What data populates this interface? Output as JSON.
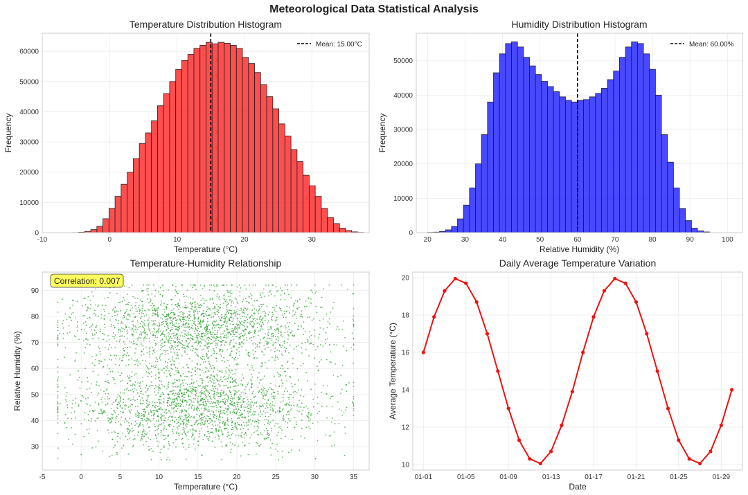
{
  "suptitle": "Meteorological Data Statistical Analysis",
  "chart_data": [
    {
      "type": "histogram",
      "title": "Temperature Distribution Histogram",
      "xlabel": "Temperature (°C)",
      "ylabel": "Frequency",
      "xlim": [
        -10,
        38.5
      ],
      "ylim": [
        0,
        66000
      ],
      "xticks": [
        -10,
        0,
        10,
        20,
        30
      ],
      "yticks": [
        0,
        10000,
        20000,
        30000,
        40000,
        50000,
        60000
      ],
      "bin_start": -5.5,
      "bin_width": 0.9,
      "counts": [
        40,
        150,
        420,
        1000,
        2100,
        4600,
        8000,
        12000,
        16000,
        20000,
        24500,
        29500,
        33000,
        37000,
        42000,
        46000,
        50000,
        54000,
        57000,
        59000,
        61000,
        62000,
        63000,
        62500,
        63000,
        62700,
        62000,
        61000,
        58000,
        56000,
        53000,
        49000,
        45000,
        41000,
        36000,
        32000,
        27500,
        23500,
        19000,
        15500,
        12000,
        8000,
        5000,
        3000,
        1500,
        700,
        250,
        80
      ],
      "mean_line": 15.0,
      "legend": {
        "label": "Mean: 15.00°C",
        "position": "top-right"
      },
      "color": "#ff2222",
      "mean_color": "#000000"
    },
    {
      "type": "histogram",
      "title": "Humidity Distribution Histogram",
      "xlabel": "Relative Humidity (%)",
      "ylabel": "Frequency",
      "xlim": [
        17,
        104
      ],
      "ylim": [
        0,
        58000
      ],
      "xticks": [
        20,
        30,
        40,
        50,
        60,
        70,
        80,
        90,
        100
      ],
      "yticks": [
        0,
        10000,
        20000,
        30000,
        40000,
        50000
      ],
      "bin_start": 20.0,
      "bin_width": 1.6,
      "counts": [
        80,
        150,
        350,
        800,
        1800,
        4000,
        8000,
        13000,
        20000,
        28500,
        38000,
        46500,
        52000,
        55000,
        55500,
        54000,
        51000,
        48500,
        46000,
        44000,
        42500,
        41000,
        39500,
        38500,
        38000,
        38500,
        38700,
        39500,
        40500,
        42000,
        44500,
        47000,
        51000,
        54000,
        55500,
        55000,
        52000,
        47500,
        40000,
        28500,
        20500,
        13000,
        7000,
        3500,
        1300,
        500,
        200
      ],
      "mean_line": 60.0,
      "legend": {
        "label": "Mean: 60.00%",
        "position": "top-right"
      },
      "color": "#1a1aff",
      "mean_color": "#000000"
    },
    {
      "type": "scatter",
      "title": "Temperature-Humidity Relationship",
      "xlabel": "Temperature (°C)",
      "ylabel": "Relative Humidity (%)",
      "xlim": [
        -5,
        37
      ],
      "ylim": [
        21,
        97
      ],
      "xticks": [
        -5,
        0,
        5,
        10,
        15,
        20,
        25,
        30,
        35
      ],
      "yticks": [
        30,
        40,
        50,
        60,
        70,
        80,
        90
      ],
      "annotation": "Correlation: 0.007",
      "color": "#2ca02c",
      "sample": {
        "n": 4000,
        "temperature_mean": 15,
        "temperature_std": 8,
        "humidity_modes": [
          45,
          76
        ],
        "humidity_std": 8,
        "x_range": [
          -3,
          35
        ],
        "y_range": [
          25,
          92
        ]
      }
    },
    {
      "type": "line",
      "title": "Daily Average Temperature Variation",
      "xlabel": "Date",
      "ylabel": "Average Temperature (°C)",
      "xlim": [
        0,
        31
      ],
      "ylim": [
        9.7,
        20.3
      ],
      "x": [
        "01-01",
        "01-02",
        "01-03",
        "01-04",
        "01-05",
        "01-06",
        "01-07",
        "01-08",
        "01-09",
        "01-10",
        "01-11",
        "01-12",
        "01-13",
        "01-14",
        "01-15",
        "01-16",
        "01-17",
        "01-18",
        "01-19",
        "01-20",
        "01-21",
        "01-22",
        "01-23",
        "01-24",
        "01-25",
        "01-26",
        "01-27",
        "01-28",
        "01-29",
        "01-30"
      ],
      "values": [
        16.0,
        17.9,
        19.3,
        19.95,
        19.7,
        18.7,
        17.0,
        15.0,
        13.0,
        11.3,
        10.3,
        10.05,
        10.7,
        12.1,
        13.9,
        16.0,
        17.9,
        19.3,
        19.95,
        19.7,
        18.7,
        17.0,
        15.0,
        13.0,
        11.3,
        10.3,
        10.05,
        10.7,
        12.1,
        14.0
      ],
      "xtick_labels": [
        "01-01",
        "01-05",
        "01-09",
        "01-13",
        "01-17",
        "01-21",
        "01-25",
        "01-29"
      ],
      "xtick_positions": [
        1,
        5,
        9,
        13,
        17,
        21,
        25,
        29
      ],
      "yticks": [
        10,
        12,
        14,
        16,
        18,
        20
      ],
      "color": "#ee1111"
    }
  ]
}
